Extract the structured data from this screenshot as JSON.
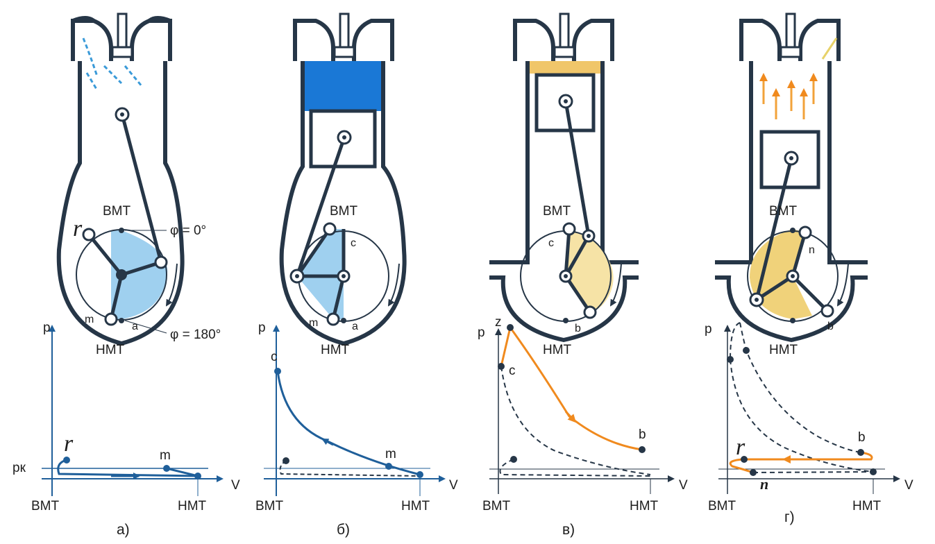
{
  "colors": {
    "ink": "#263647",
    "blue": "#1f5f9a",
    "intake_fill": "#9fd0ef",
    "charge_fill": "#1a78d6",
    "combustion": "#f0c66a",
    "work_fill": "#f6e3a6",
    "curve_orange": "#f08a1e"
  },
  "panels": [
    {
      "caption": "а)",
      "stroke": "intake",
      "points": {
        "top": "ВМТ",
        "bottom": "НМТ",
        "r": "r",
        "m": "m",
        "a": "a"
      },
      "angles": {
        "top": "φ = 0°",
        "bottom": "φ = 180°"
      },
      "graph": {
        "y_axis": "p",
        "x_axis": "V",
        "pk_label": "pк",
        "x_left": "ВМТ",
        "x_right": "НМТ",
        "r": "r",
        "m": "m"
      }
    },
    {
      "caption": "б)",
      "stroke": "compression",
      "points": {
        "top": "ВМТ",
        "bottom": "НМТ",
        "c": "c",
        "m": "m",
        "a": "a"
      },
      "graph": {
        "y_axis": "p",
        "x_axis": "V",
        "x_left": "ВМТ",
        "x_right": "НМТ",
        "c": "c",
        "m": "m"
      }
    },
    {
      "caption": "в)",
      "stroke": "power",
      "points": {
        "top": "ВМТ",
        "bottom": "НМТ",
        "c": "c",
        "b": "b"
      },
      "graph": {
        "y_axis": "p",
        "x_axis": "V",
        "x_left": "ВМТ",
        "x_right": "НМТ",
        "z": "z",
        "c": "c",
        "b": "b"
      }
    },
    {
      "caption": "г)",
      "stroke": "exhaust",
      "points": {
        "top": "ВМТ",
        "bottom": "НМТ",
        "n": "n",
        "b": "b"
      },
      "graph": {
        "y_axis": "p",
        "x_axis": "V",
        "x_left": "ВМТ",
        "x_right": "НМТ",
        "r": "r",
        "b": "b",
        "n": "n"
      }
    }
  ]
}
